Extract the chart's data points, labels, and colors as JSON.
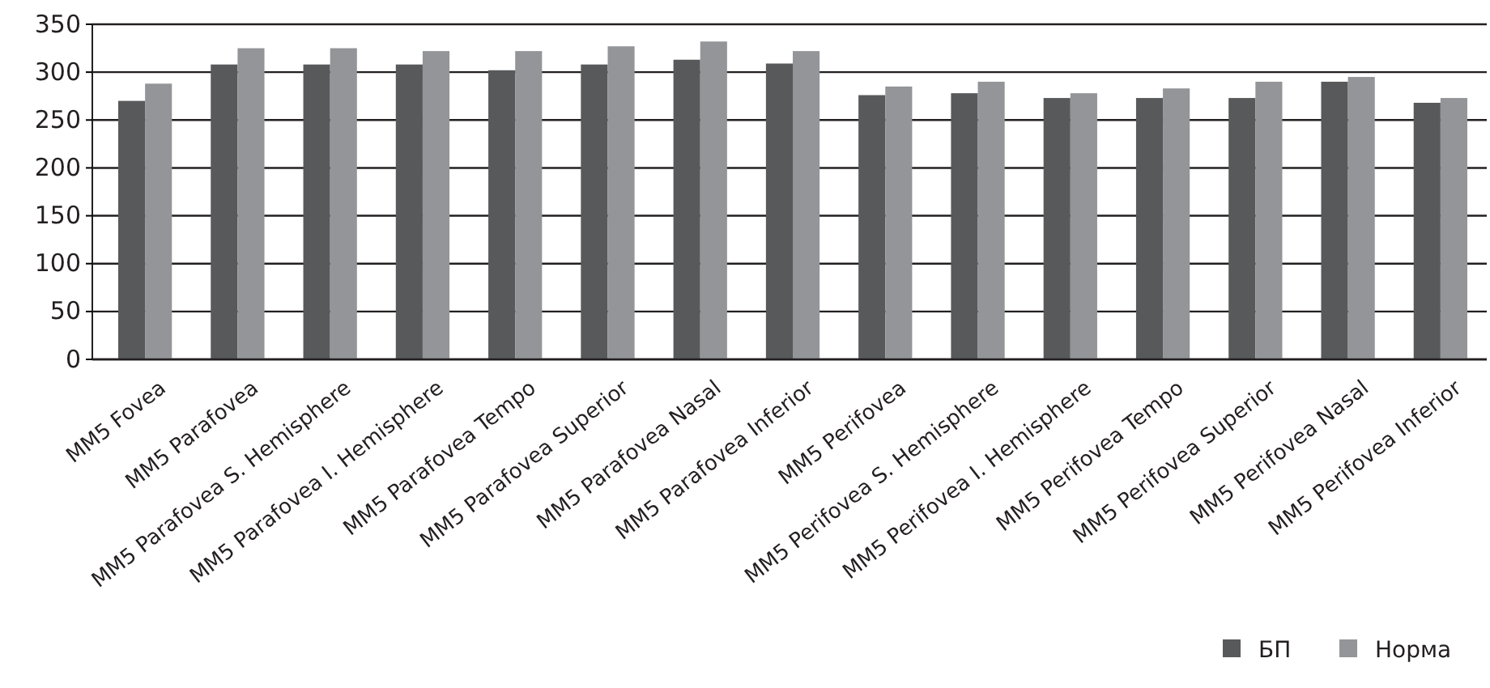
{
  "chart_data": {
    "type": "bar",
    "categories": [
      "MM5 Fovea",
      "MM5 Parafovea",
      "MM5 Parafovea S. Hemisphere",
      "MM5 Parafovea I. Hemisphere",
      "MM5 Parafovea Tempo",
      "MM5 Parafovea Superior",
      "MM5 Parafovea Nasal",
      "MM5 Parafovea Inferior",
      "MM5 Perifovea",
      "MM5 Perifovea S. Hemisphere",
      "MM5 Perifovea I. Hemisphere",
      "MM5 Perifovea Tempo",
      "MM5 Perifovea Superior",
      "MM5 Perifovea Nasal",
      "MM5 Perifovea Inferior"
    ],
    "series": [
      {
        "name": "БП",
        "color": "#58595b",
        "values": [
          270,
          308,
          308,
          308,
          302,
          308,
          313,
          309,
          276,
          278,
          273,
          273,
          273,
          290,
          268
        ]
      },
      {
        "name": "Норма",
        "color": "#939598",
        "values": [
          288,
          325,
          325,
          322,
          322,
          327,
          332,
          322,
          285,
          290,
          278,
          283,
          290,
          295,
          273
        ]
      }
    ],
    "ylim": [
      0,
      350
    ],
    "yticks": [
      0,
      50,
      100,
      150,
      200,
      250,
      300,
      350
    ],
    "grid": "y",
    "legend": "bottom right"
  }
}
